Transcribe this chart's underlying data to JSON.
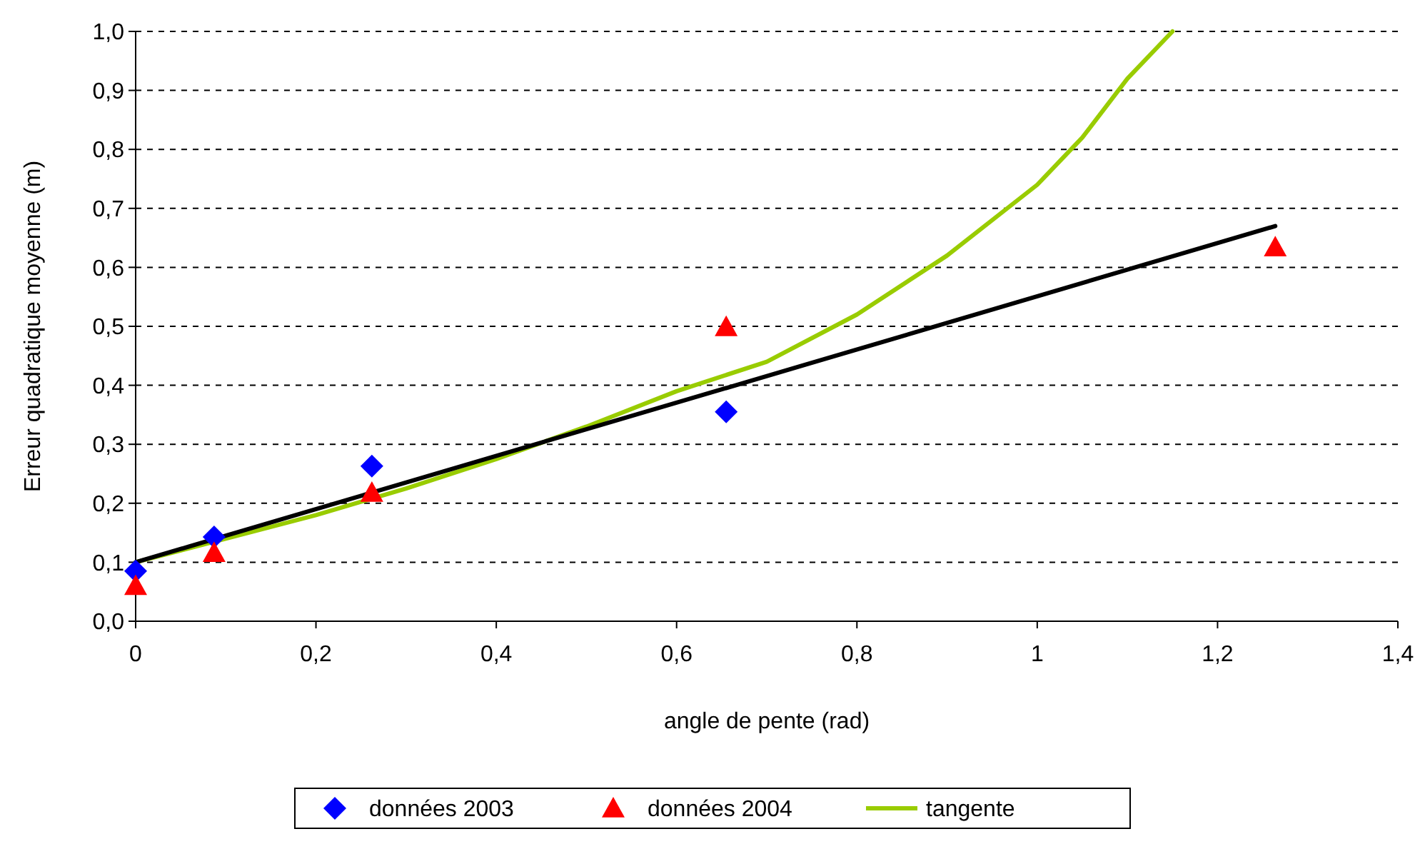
{
  "chart_data": {
    "type": "scatter",
    "xlabel": "angle de pente (rad)",
    "ylabel": "Erreur quadratique moyenne (m)",
    "xlim": [
      0,
      1.4
    ],
    "ylim": [
      0,
      1.0
    ],
    "xticks": [
      0,
      {
        "value": 0.2,
        "label": "0,2"
      },
      {
        "value": 0.4,
        "label": "0,4"
      },
      {
        "value": 0.6,
        "label": "0,6"
      },
      {
        "value": 0.8,
        "label": "0,8"
      },
      1,
      {
        "value": 1.2,
        "label": "1,2"
      },
      {
        "value": 1.4,
        "label": "1,4"
      }
    ],
    "yticks": [
      {
        "value": 0,
        "label": "0,0"
      },
      {
        "value": 0.1,
        "label": "0,1"
      },
      {
        "value": 0.2,
        "label": "0,2"
      },
      {
        "value": 0.3,
        "label": "0,3"
      },
      {
        "value": 0.4,
        "label": "0,4"
      },
      {
        "value": 0.5,
        "label": "0,5"
      },
      {
        "value": 0.6,
        "label": "0,6"
      },
      {
        "value": 0.7,
        "label": "0,7"
      },
      {
        "value": 0.8,
        "label": "0,8"
      },
      {
        "value": 0.9,
        "label": "0,9"
      },
      {
        "value": 1.0,
        "label": "1,0"
      }
    ],
    "grid": "y",
    "legend": "bottom",
    "series": [
      {
        "name": "données 2003",
        "marker": "diamond",
        "color": "#0000ff",
        "x": [
          0,
          0.087,
          0.262,
          0.655
        ],
        "values": [
          0.085,
          0.143,
          0.263,
          0.355
        ]
      },
      {
        "name": "données 2004",
        "marker": "triangle",
        "color": "#ff0000",
        "x": [
          0,
          0.087,
          0.262,
          0.655,
          1.264
        ],
        "values": [
          0.06,
          0.116,
          0.218,
          0.499,
          0.634
        ]
      },
      {
        "name": "tangente",
        "type": "line",
        "marker": "none",
        "line_style": "solid",
        "color": "#99cc00",
        "x": [
          0,
          0.1,
          0.2,
          0.3,
          0.4,
          0.5,
          0.6,
          0.7,
          0.8,
          0.9,
          1.0,
          1.05,
          1.1,
          1.15
        ],
        "values": [
          0.1,
          0.14,
          0.18,
          0.225,
          0.275,
          0.33,
          0.39,
          0.44,
          0.52,
          0.62,
          0.74,
          0.82,
          0.92,
          1.0
        ]
      },
      {
        "type": "line",
        "marker": "none",
        "line_style": "solid",
        "color": "#000000",
        "x": [
          0,
          1.264
        ],
        "values": [
          0.1,
          0.67
        ]
      }
    ]
  }
}
